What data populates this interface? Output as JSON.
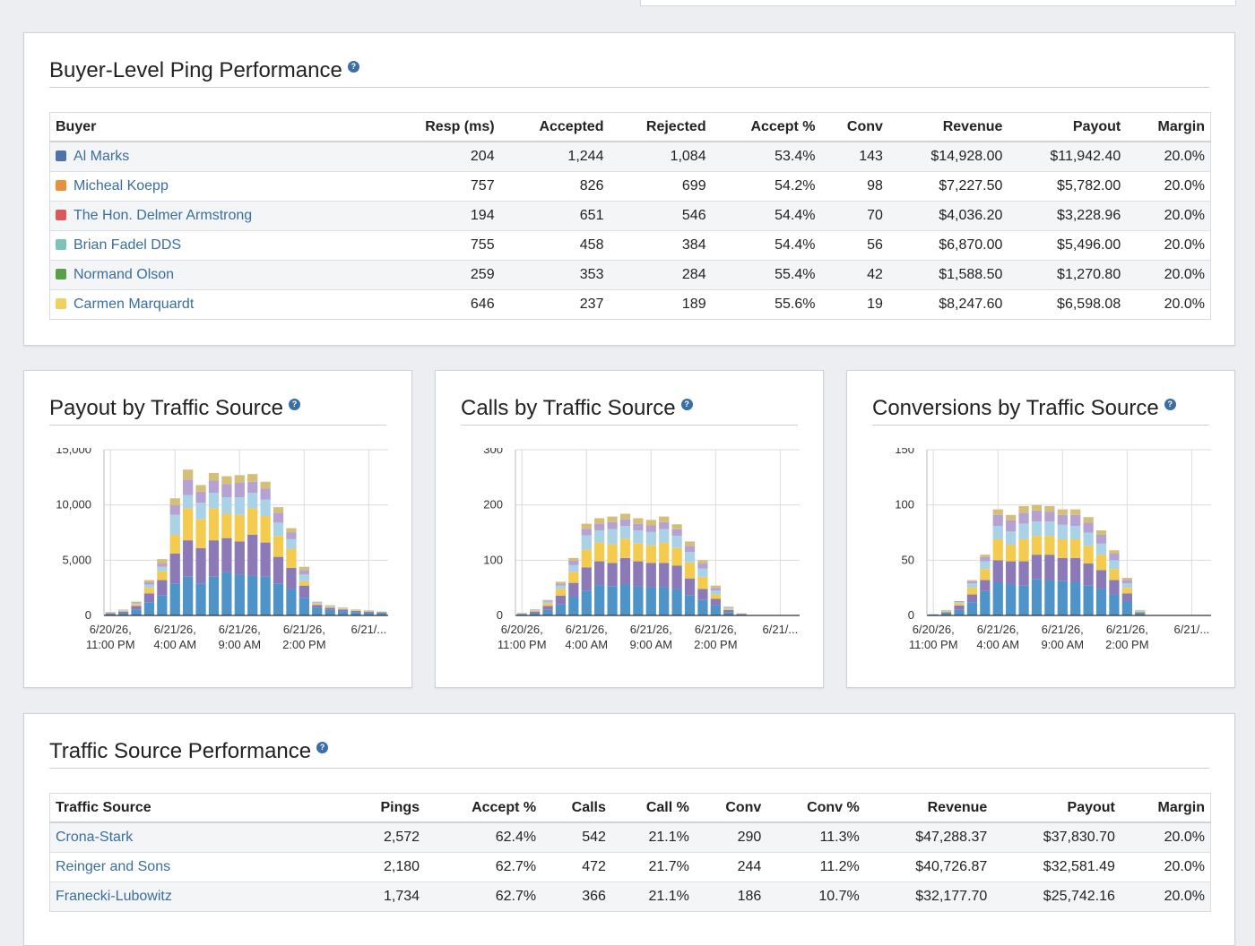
{
  "buyer_panel": {
    "title": "Buyer-Level Ping Performance",
    "columns": [
      "Buyer",
      "Resp (ms)",
      "Accepted",
      "Rejected",
      "Accept %",
      "Conv",
      "Revenue",
      "Payout",
      "Margin"
    ],
    "rows": [
      {
        "color": "#4f73a8",
        "name": "Al Marks",
        "resp": "204",
        "accepted": "1,244",
        "rejected": "1,084",
        "accept_pct": "53.4%",
        "conv": "143",
        "revenue": "$14,928.00",
        "payout": "$11,942.40",
        "margin": "20.0%"
      },
      {
        "color": "#e8913a",
        "name": "Micheal Koepp",
        "resp": "757",
        "accepted": "826",
        "rejected": "699",
        "accept_pct": "54.2%",
        "conv": "98",
        "revenue": "$7,227.50",
        "payout": "$5,782.00",
        "margin": "20.0%"
      },
      {
        "color": "#d95a5a",
        "name": "The Hon. Delmer Armstrong",
        "resp": "194",
        "accepted": "651",
        "rejected": "546",
        "accept_pct": "54.4%",
        "conv": "70",
        "revenue": "$4,036.20",
        "payout": "$3,228.96",
        "margin": "20.0%"
      },
      {
        "color": "#7cc3b8",
        "name": "Brian Fadel DDS",
        "resp": "755",
        "accepted": "458",
        "rejected": "384",
        "accept_pct": "54.4%",
        "conv": "56",
        "revenue": "$6,870.00",
        "payout": "$5,496.00",
        "margin": "20.0%"
      },
      {
        "color": "#5a9f4c",
        "name": "Normand Olson",
        "resp": "259",
        "accepted": "353",
        "rejected": "284",
        "accept_pct": "55.4%",
        "conv": "42",
        "revenue": "$1,588.50",
        "payout": "$1,270.80",
        "margin": "20.0%"
      },
      {
        "color": "#efd25e",
        "name": "Carmen Marquardt",
        "resp": "646",
        "accepted": "237",
        "rejected": "189",
        "accept_pct": "55.6%",
        "conv": "19",
        "revenue": "$8,247.60",
        "payout": "$6,598.08",
        "margin": "20.0%"
      }
    ]
  },
  "series_colors": [
    "#4e94c8",
    "#8c7ab8",
    "#f2cb4f",
    "#a9d2e6",
    "#b6a2d2",
    "#d4bf78"
  ],
  "chart_data": [
    {
      "type": "bar",
      "title": "Payout by Traffic Source",
      "stacked": true,
      "ylim": [
        0,
        15000
      ],
      "yticks": [
        "0",
        "5,000",
        "10,000",
        "15,000"
      ],
      "ytick_values": [
        0,
        5000,
        10000,
        15000
      ],
      "xtick_labels": [
        [
          "6/20/26,",
          "11:00 PM"
        ],
        [
          "6/21/26,",
          "4:00 AM"
        ],
        [
          "6/21/26,",
          "9:00 AM"
        ],
        [
          "6/21/26,",
          "2:00 PM"
        ],
        [
          "6/21/..."
        ]
      ],
      "series": [
        {
          "values": [
            120,
            200,
            550,
            1200,
            1800,
            2900,
            3500,
            2900,
            3500,
            3900,
            3700,
            3600,
            3500,
            2900,
            2400,
            1600,
            700,
            500,
            400,
            300,
            250,
            200
          ]
        },
        {
          "values": [
            80,
            150,
            300,
            800,
            1400,
            2700,
            3300,
            3200,
            3300,
            3100,
            3000,
            3700,
            3100,
            2400,
            1900,
            1100,
            250,
            200,
            150,
            120,
            100,
            80
          ]
        },
        {
          "values": [
            50,
            80,
            150,
            500,
            800,
            1700,
            2900,
            2600,
            2900,
            2200,
            2400,
            2400,
            2400,
            1900,
            1700,
            400,
            120,
            100,
            80,
            60,
            50,
            40
          ]
        },
        {
          "values": [
            30,
            50,
            100,
            300,
            400,
            1800,
            1200,
            1500,
            1400,
            1500,
            1600,
            1400,
            1500,
            1200,
            900,
            600,
            80,
            60,
            50,
            40,
            30,
            20
          ]
        },
        {
          "values": [
            20,
            30,
            80,
            200,
            300,
            900,
            1400,
            1000,
            1100,
            1200,
            1300,
            1000,
            1000,
            900,
            600,
            400,
            60,
            40,
            30,
            20,
            20,
            10
          ]
        },
        {
          "values": [
            20,
            30,
            70,
            200,
            400,
            600,
            900,
            600,
            700,
            700,
            700,
            700,
            600,
            500,
            400,
            300,
            40,
            30,
            20,
            20,
            20,
            10
          ]
        }
      ]
    },
    {
      "type": "bar",
      "title": "Calls by Traffic Source",
      "stacked": true,
      "ylim": [
        0,
        300
      ],
      "yticks": [
        "0",
        "100",
        "200",
        "300"
      ],
      "ytick_values": [
        0,
        100,
        200,
        300
      ],
      "xtick_labels": [
        [
          "6/20/26,",
          "11:00 PM"
        ],
        [
          "6/21/26,",
          "4:00 AM"
        ],
        [
          "6/21/26,",
          "9:00 AM"
        ],
        [
          "6/21/26,",
          "2:00 PM"
        ],
        [
          "6/21/..."
        ]
      ],
      "series": [
        {
          "values": [
            2,
            4,
            10,
            20,
            34,
            45,
            55,
            53,
            56,
            52,
            51,
            51,
            48,
            37,
            28,
            18,
            6,
            2,
            0,
            0,
            0,
            0
          ]
        },
        {
          "values": [
            1,
            3,
            7,
            16,
            25,
            42,
            43,
            42,
            48,
            46,
            44,
            44,
            42,
            30,
            20,
            12,
            4,
            1,
            0,
            0,
            0,
            0
          ]
        },
        {
          "values": [
            1,
            2,
            5,
            12,
            20,
            32,
            34,
            34,
            35,
            33,
            32,
            37,
            32,
            29,
            22,
            8,
            2,
            1,
            0,
            0,
            0,
            0
          ]
        },
        {
          "values": [
            1,
            1,
            3,
            6,
            12,
            26,
            22,
            27,
            23,
            23,
            24,
            24,
            22,
            19,
            15,
            7,
            2,
            0,
            0,
            0,
            0,
            0
          ]
        },
        {
          "values": [
            0,
            1,
            2,
            4,
            8,
            12,
            12,
            13,
            12,
            12,
            12,
            13,
            12,
            11,
            9,
            5,
            1,
            0,
            0,
            0,
            0,
            0
          ]
        },
        {
          "values": [
            0,
            0,
            1,
            3,
            5,
            9,
            10,
            10,
            10,
            10,
            10,
            10,
            9,
            8,
            6,
            4,
            1,
            0,
            0,
            0,
            0,
            0
          ]
        }
      ]
    },
    {
      "type": "bar",
      "title": "Conversions by Traffic Source",
      "stacked": true,
      "ylim": [
        0,
        150
      ],
      "yticks": [
        "0",
        "50",
        "100",
        "150"
      ],
      "ytick_values": [
        0,
        50,
        100,
        150
      ],
      "xtick_labels": [
        [
          "6/20/26,",
          "11:00 PM"
        ],
        [
          "6/21/26,",
          "4:00 AM"
        ],
        [
          "6/21/26,",
          "9:00 AM"
        ],
        [
          "6/21/26,",
          "2:00 PM"
        ],
        [
          "6/21/..."
        ]
      ],
      "series": [
        {
          "values": [
            1,
            2,
            5,
            12,
            22,
            30,
            28,
            27,
            33,
            32,
            31,
            30,
            27,
            24,
            19,
            13,
            2,
            0,
            0,
            0,
            0,
            0
          ]
        },
        {
          "values": [
            0,
            1,
            4,
            7,
            10,
            20,
            21,
            22,
            22,
            23,
            21,
            22,
            20,
            17,
            13,
            7,
            1,
            0,
            0,
            0,
            0,
            0
          ]
        },
        {
          "values": [
            0,
            1,
            2,
            6,
            10,
            19,
            15,
            20,
            17,
            17,
            17,
            17,
            16,
            14,
            10,
            5,
            1,
            0,
            0,
            0,
            0,
            0
          ]
        },
        {
          "values": [
            0,
            1,
            1,
            4,
            7,
            12,
            12,
            14,
            13,
            13,
            13,
            12,
            12,
            10,
            8,
            4,
            1,
            0,
            0,
            0,
            0,
            0
          ]
        },
        {
          "values": [
            0,
            0,
            1,
            2,
            4,
            10,
            10,
            10,
            10,
            9,
            9,
            10,
            9,
            8,
            6,
            3,
            0,
            0,
            0,
            0,
            0,
            0
          ]
        },
        {
          "values": [
            0,
            0,
            0,
            1,
            2,
            5,
            5,
            6,
            5,
            5,
            5,
            5,
            5,
            4,
            3,
            2,
            0,
            0,
            0,
            0,
            0,
            0
          ]
        }
      ]
    }
  ],
  "traffic_panel": {
    "title": "Traffic Source Performance",
    "columns": [
      "Traffic Source",
      "Pings",
      "Accept %",
      "Calls",
      "Call %",
      "Conv",
      "Conv %",
      "Revenue",
      "Payout",
      "Margin"
    ],
    "rows": [
      {
        "name": "Crona-Stark",
        "pings": "2,572",
        "accept_pct": "62.4%",
        "calls": "542",
        "call_pct": "21.1%",
        "conv": "290",
        "conv_pct": "11.3%",
        "revenue": "$47,288.37",
        "payout": "$37,830.70",
        "margin": "20.0%"
      },
      {
        "name": "Reinger and Sons",
        "pings": "2,180",
        "accept_pct": "62.7%",
        "calls": "472",
        "call_pct": "21.7%",
        "conv": "244",
        "conv_pct": "11.2%",
        "revenue": "$40,726.87",
        "payout": "$32,581.49",
        "margin": "20.0%"
      },
      {
        "name": "Franecki-Lubowitz",
        "pings": "1,734",
        "accept_pct": "62.7%",
        "calls": "366",
        "call_pct": "21.1%",
        "conv": "186",
        "conv_pct": "10.7%",
        "revenue": "$32,177.70",
        "payout": "$25,742.16",
        "margin": "20.0%"
      }
    ]
  }
}
